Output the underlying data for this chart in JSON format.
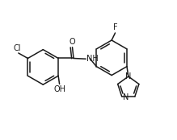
{
  "bg_color": "#ffffff",
  "line_color": "#1a1a1a",
  "line_width": 1.1,
  "font_size": 7.0,
  "figsize": [
    2.19,
    1.74
  ],
  "dpi": 100,
  "xlim": [
    -2.8,
    3.2
  ],
  "ylim": [
    -2.2,
    1.8
  ]
}
